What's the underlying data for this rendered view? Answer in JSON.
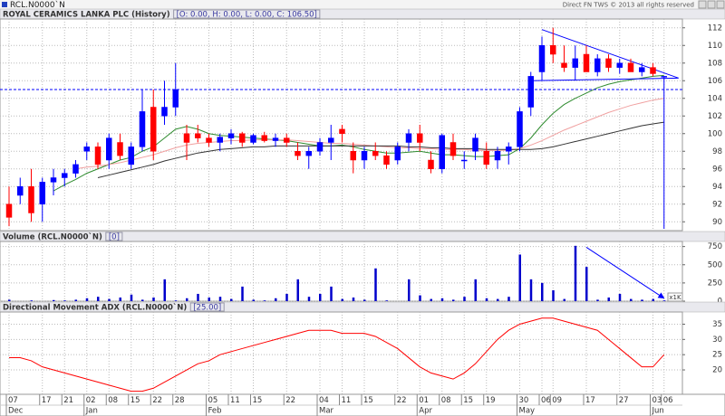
{
  "header": {
    "symbol": "RCL.N0000`N",
    "vendor": "Direct FN TWS © 2013 all rights reserved"
  },
  "chart_data": [
    {
      "type": "candlestick",
      "title": "ROYAL CERAMICS LANKA PLC (History)",
      "legend": "[O: 0.00, H: 0.00, L: 0.00, C: 106.50]",
      "categories": [
        "07",
        null,
        null,
        "17",
        null,
        "21",
        null,
        "02",
        null,
        "08",
        null,
        "15",
        null,
        "22",
        null,
        "28",
        null,
        null,
        "05",
        null,
        "11",
        null,
        "15",
        null,
        null,
        "22",
        null,
        null,
        "04",
        null,
        "11",
        null,
        "15",
        null,
        null,
        "22",
        null,
        "01",
        null,
        "08",
        null,
        "15",
        null,
        "19",
        null,
        null,
        "30",
        null,
        "06",
        "09",
        null,
        null,
        "17",
        null,
        null,
        "27",
        null,
        null,
        "03",
        "06"
      ],
      "month_labels": [
        "Dec",
        null,
        null,
        null,
        null,
        null,
        null,
        "Jan",
        null,
        null,
        null,
        null,
        null,
        null,
        null,
        null,
        null,
        null,
        "Feb",
        null,
        null,
        null,
        null,
        null,
        null,
        null,
        null,
        null,
        "Mar",
        null,
        null,
        null,
        null,
        null,
        null,
        null,
        null,
        "Apr",
        null,
        null,
        null,
        null,
        null,
        null,
        null,
        null,
        "May",
        null,
        null,
        null,
        null,
        null,
        null,
        null,
        null,
        null,
        null,
        null,
        "Jun",
        null
      ],
      "candles": [
        [
          92,
          94,
          89.5,
          90.5
        ],
        [
          93,
          95,
          92,
          94
        ],
        [
          94,
          96,
          90,
          91
        ],
        [
          92,
          95,
          90,
          94.5
        ],
        [
          94.5,
          96,
          93,
          95
        ],
        [
          95,
          96,
          94,
          95.5
        ],
        [
          95.5,
          97,
          95,
          96.5
        ],
        [
          98,
          99,
          97,
          98.5
        ],
        [
          98.5,
          99,
          96,
          96.5
        ],
        [
          97,
          100,
          96,
          99.5
        ],
        [
          99,
          100,
          97,
          97.5
        ],
        [
          96.5,
          99,
          96,
          98.5
        ],
        [
          98.5,
          105,
          98,
          102.5
        ],
        [
          103,
          105,
          97,
          98
        ],
        [
          102,
          106,
          101,
          103
        ],
        [
          103,
          108,
          102,
          105
        ],
        [
          100,
          101,
          97,
          99
        ],
        [
          100,
          101,
          99,
          99.5
        ],
        [
          99.5,
          100,
          98.5,
          99
        ],
        [
          99,
          100,
          98,
          99.6
        ],
        [
          99.5,
          100.5,
          98.8,
          100
        ],
        [
          100,
          100.2,
          98.5,
          99
        ],
        [
          99,
          100,
          98.8,
          99.8
        ],
        [
          99.8,
          100.2,
          99,
          99.2
        ],
        [
          99.2,
          100,
          98.5,
          99.5
        ],
        [
          99.5,
          100,
          98.5,
          99
        ],
        [
          98,
          99,
          97,
          97.5
        ],
        [
          97.5,
          98.5,
          96,
          98
        ],
        [
          98,
          99.5,
          97.5,
          99
        ],
        [
          99,
          101,
          97,
          99.5
        ],
        [
          100.5,
          101,
          99,
          100
        ],
        [
          98,
          99,
          95.5,
          97
        ],
        [
          97,
          98.5,
          96,
          98
        ],
        [
          98,
          99,
          97,
          97.5
        ],
        [
          97.5,
          98,
          96,
          96.5
        ],
        [
          97,
          99,
          96.5,
          98.5
        ],
        [
          99,
          100.5,
          98,
          100
        ],
        [
          100,
          101,
          98,
          99
        ],
        [
          97,
          98,
          95.5,
          96
        ],
        [
          96,
          100,
          95.5,
          99.8
        ],
        [
          99,
          100,
          97,
          97.5
        ],
        [
          97,
          98,
          96,
          97
        ],
        [
          98,
          100,
          97,
          99.5
        ],
        [
          98,
          99,
          96,
          96.5
        ],
        [
          97,
          98.5,
          96,
          98
        ],
        [
          98,
          99,
          96.5,
          98.5
        ],
        [
          98.5,
          103,
          98,
          102.5
        ],
        [
          103,
          107,
          102,
          106.5
        ],
        [
          107,
          111,
          106,
          110
        ],
        [
          110,
          112,
          108,
          109
        ],
        [
          108,
          110,
          107,
          107.5
        ],
        [
          107.5,
          110,
          106,
          108.5
        ],
        [
          109,
          110,
          107,
          107
        ],
        [
          107,
          109,
          106.5,
          108.5
        ],
        [
          108.5,
          109,
          107,
          107.5
        ],
        [
          107.5,
          108.5,
          106.8,
          108
        ],
        [
          108,
          108.5,
          107,
          107
        ],
        [
          107,
          108,
          106.5,
          107.5
        ],
        [
          107.5,
          108,
          106.5,
          106.8
        ],
        [
          106.5,
          106.5,
          89.2,
          106.5
        ]
      ],
      "up_color": "#0000ff",
      "down_color": "#ff0000",
      "series": [
        {
          "color": "#2e8b2e",
          "values": [
            null,
            null,
            null,
            null,
            93.5,
            94.2,
            94.8,
            95.5,
            96,
            96.5,
            97,
            97.3,
            98,
            98.5,
            99.5,
            100.5,
            100.8,
            100.5,
            100,
            99.8,
            99.7,
            99.6,
            99.5,
            99.4,
            99.3,
            99.2,
            99,
            98.8,
            98.6,
            98.6,
            98.7,
            98.5,
            98.2,
            98,
            97.8,
            97.8,
            97.9,
            98,
            97.8,
            97.6,
            97.6,
            97.5,
            97.4,
            97.4,
            97.5,
            97.6,
            98.3,
            99.5,
            101,
            102.3,
            103.3,
            104,
            104.6,
            105.2,
            105.6,
            105.9,
            106.1,
            106.3,
            106.5,
            106.6
          ]
        },
        {
          "color": "#f0a0a0",
          "values": [
            null,
            null,
            null,
            null,
            null,
            null,
            96,
            96.2,
            96.3,
            96.5,
            96.7,
            97,
            97.3,
            97.6,
            98,
            98.4,
            98.7,
            98.9,
            99,
            99.1,
            99.2,
            99.2,
            99.3,
            99.3,
            99.3,
            99.3,
            99.2,
            99.1,
            99,
            98.9,
            98.9,
            98.8,
            98.7,
            98.6,
            98.5,
            98.4,
            98.4,
            98.3,
            98.3,
            98.2,
            98.2,
            98.2,
            98.1,
            98.1,
            98.1,
            98.1,
            98.3,
            98.7,
            99.2,
            99.8,
            100.4,
            100.9,
            101.4,
            101.9,
            102.4,
            102.8,
            103.2,
            103.5,
            103.8,
            104
          ]
        },
        {
          "color": "#333333",
          "values": [
            null,
            null,
            null,
            null,
            null,
            null,
            null,
            null,
            95,
            95.3,
            95.6,
            95.9,
            96.2,
            96.5,
            96.9,
            97.2,
            97.5,
            97.8,
            98,
            98.2,
            98.3,
            98.4,
            98.5,
            98.5,
            98.6,
            98.6,
            98.6,
            98.6,
            98.6,
            98.6,
            98.6,
            98.6,
            98.6,
            98.6,
            98.6,
            98.6,
            98.5,
            98.5,
            98.4,
            98.4,
            98.3,
            98.3,
            98.3,
            98.2,
            98.2,
            98.2,
            98.2,
            98.2,
            98.3,
            98.5,
            98.8,
            99.1,
            99.4,
            99.7,
            100,
            100.3,
            100.6,
            100.9,
            101.1,
            101.3
          ]
        }
      ],
      "hline": 105,
      "hline_color": "#0000ff",
      "trendlines": [
        {
          "color": "#0000ff",
          "x": [
            48,
            60.3
          ],
          "y": [
            111.8,
            106.3
          ]
        },
        {
          "color": "#0000ff",
          "x": [
            47,
            60.3
          ],
          "y": [
            106,
            106.3
          ]
        }
      ],
      "ylim": [
        89,
        113
      ],
      "yticks": [
        90,
        92,
        94,
        96,
        98,
        100,
        102,
        104,
        106,
        108,
        110,
        112
      ],
      "grid": true
    },
    {
      "type": "bar",
      "title": "Volume (RCL.N0000`N)",
      "legend": "[0]",
      "unit_label": "x1K",
      "values": [
        20,
        0,
        10,
        0,
        15,
        10,
        20,
        40,
        60,
        30,
        50,
        90,
        20,
        50,
        300,
        10,
        40,
        100,
        50,
        60,
        30,
        200,
        20,
        10,
        40,
        100,
        300,
        60,
        100,
        200,
        30,
        50,
        20,
        450,
        10,
        0,
        300,
        80,
        30,
        40,
        20,
        60,
        300,
        40,
        30,
        60,
        640,
        300,
        250,
        150,
        30,
        760,
        470,
        20,
        50,
        100,
        30,
        20,
        30,
        10
      ],
      "color": "#0000cc",
      "arrow": {
        "color": "#0000ff",
        "x": [
          52,
          59
        ],
        "y": [
          740,
          40
        ]
      },
      "ylim": [
        0,
        820
      ],
      "yticks": [
        0,
        250,
        500,
        750
      ],
      "grid": true
    },
    {
      "type": "line",
      "title": "Directional Movement ADX (RCL.N0000`N)",
      "legend": "[25.00]",
      "values": [
        24,
        24,
        23,
        21,
        20,
        19,
        18,
        17,
        16,
        15,
        14,
        13,
        13,
        14,
        16,
        18,
        20,
        22,
        23,
        25,
        26,
        27,
        28,
        29,
        30,
        31,
        32,
        33,
        33,
        33,
        32,
        32,
        32,
        31,
        29,
        27,
        24,
        21,
        19,
        18,
        17,
        19,
        22,
        26,
        30,
        33,
        35,
        36,
        37,
        37,
        36,
        35,
        34,
        33,
        30,
        27,
        24,
        21,
        21,
        25
      ],
      "color": "#ff0000",
      "ylim": [
        12,
        39
      ],
      "yticks": [
        20,
        25,
        30,
        35
      ],
      "grid": true
    }
  ]
}
